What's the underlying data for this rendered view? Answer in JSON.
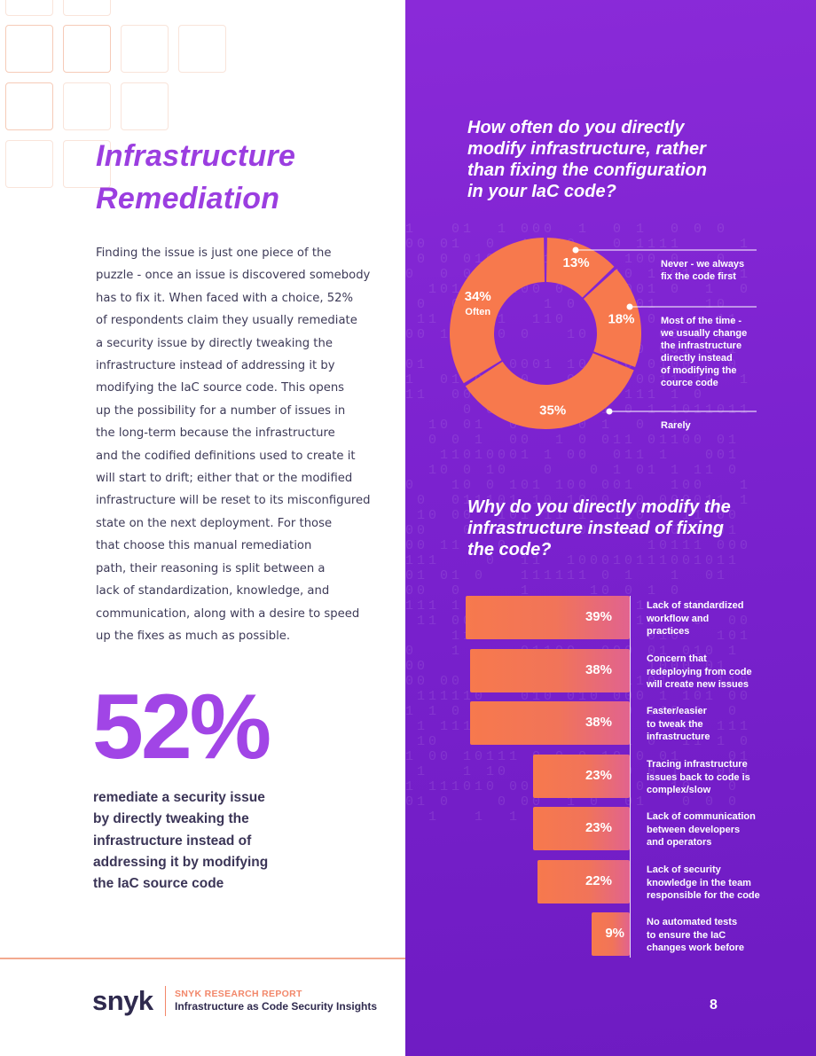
{
  "title": {
    "line1": "Infrastructure",
    "line2": "Remediation"
  },
  "body_lines": [
    "Finding the issue is just one piece of the",
    "puzzle - once an issue is discovered somebody",
    "has to fix it. When faced with a choice, 52%",
    "of respondents claim they usually remediate",
    "a security issue by directly tweaking the",
    "infrastructure instead of addressing it by",
    "modifying the IaC source code. This opens",
    "up the possibility for a number of issues in",
    "the long-term because the infrastructure",
    "and the codified definitions used to create it",
    "will start to drift; either that or the modified",
    "infrastructure will be reset to its misconfigured",
    "state on the next deployment. For those",
    "that choose this manual remediation",
    "path, their reasoning is split between a",
    "lack of standardization, knowledge, and",
    "communication, along with a desire to speed",
    "up the fixes as much as possible."
  ],
  "big_stat": "52%",
  "big_stat_desc": [
    "remediate a security issue",
    "by directly tweaking the",
    "infrastructure instead of",
    "addressing it by modifying",
    "the IaC source code"
  ],
  "footer": {
    "logo": "snyk",
    "report_label": "SNYK RESEARCH REPORT",
    "report_title": "Infrastructure as Code Security Insights",
    "page_number": "8"
  },
  "colors": {
    "purple": "#7b22cf",
    "coral": "#f7794d",
    "title_purple": "#9b3ee0",
    "text_dark": "#3d3a57"
  },
  "chart_data": [
    {
      "type": "pie",
      "title": [
        "How often do you directly",
        "modify infrastructure, rather",
        "than fixing the configuration",
        "in your IaC code?"
      ],
      "slices": [
        {
          "label": [
            "Never - we always",
            "fix the code first"
          ],
          "value": 13,
          "text": "13%"
        },
        {
          "label": [
            "Most of the time -",
            "we usually change",
            "the infrastructure",
            "directly  instead",
            "of modifying the",
            "cource code"
          ],
          "value": 18,
          "text": "18%"
        },
        {
          "label": [
            "Rarely"
          ],
          "value": 35,
          "text": "35%"
        },
        {
          "label": [
            "Often"
          ],
          "value": 34,
          "text": "34%"
        }
      ]
    },
    {
      "type": "bar",
      "orientation": "horizontal",
      "title": [
        "Why do you directly modify the",
        "infrastructure instead of fixing",
        "the code?"
      ],
      "bars": [
        {
          "value": 39,
          "text": "39%",
          "label": [
            "Lack of standardized",
            "workflow and",
            "practices"
          ]
        },
        {
          "value": 38,
          "text": "38%",
          "label": [
            "Concern that",
            "redeploying from code",
            "will create new issues"
          ]
        },
        {
          "value": 38,
          "text": "38%",
          "label": [
            "Faster/easier",
            "to tweak the",
            "infrastructure"
          ]
        },
        {
          "value": 23,
          "text": "23%",
          "label": [
            "Tracing infrastructure",
            "issues back to code is",
            "complex/slow"
          ]
        },
        {
          "value": 23,
          "text": "23%",
          "label": [
            "Lack of communication",
            "between developers",
            "and operators"
          ]
        },
        {
          "value": 22,
          "text": "22%",
          "label": [
            "Lack of security",
            "knowledge in the team",
            "responsible for the code"
          ]
        },
        {
          "value": 9,
          "text": "9%",
          "label": [
            "No automated tests",
            "to ensure the IaC",
            "changes work before"
          ]
        }
      ]
    }
  ]
}
